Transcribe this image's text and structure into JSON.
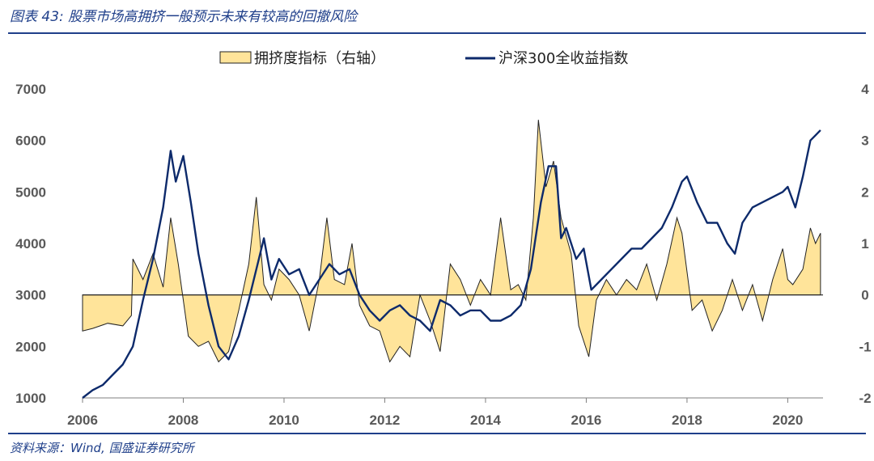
{
  "caption": "图表 43: 股票市场高拥挤一般预示未来有较高的回撤风险",
  "source": "资料来源：Wind, 国盛证券研究所",
  "colors": {
    "accent": "#1f3f8a",
    "fill": "#ffe49a",
    "line": "#0d2a6b",
    "outline": "#222222"
  },
  "chart_data": {
    "type": "area",
    "title": "",
    "legend_position": "top",
    "grid": false,
    "x_ticks": [
      "2006",
      "2008",
      "2010",
      "2012",
      "2014",
      "2016",
      "2018",
      "2020"
    ],
    "y_left_ticks": [
      "7000",
      "6000",
      "5000",
      "4000",
      "3000",
      "2000",
      "1000"
    ],
    "y_right_ticks": [
      "4",
      "3",
      "2",
      "1",
      "0",
      "-1",
      "-2"
    ],
    "y_left_range": [
      1000,
      7000
    ],
    "y_right_range": [
      -2,
      4
    ],
    "x_range": [
      2006,
      2020.7
    ],
    "series": [
      {
        "name": "拥挤度指标（右轴）",
        "axis": "right",
        "type": "area",
        "x": [
          2006.0,
          2006.2,
          2006.5,
          2006.8,
          2006.97,
          2007.0,
          2007.2,
          2007.4,
          2007.6,
          2007.75,
          2007.9,
          2008.1,
          2008.3,
          2008.5,
          2008.7,
          2008.9,
          2009.1,
          2009.3,
          2009.45,
          2009.6,
          2009.75,
          2009.9,
          2010.1,
          2010.3,
          2010.5,
          2010.7,
          2010.85,
          2011.0,
          2011.2,
          2011.35,
          2011.5,
          2011.7,
          2011.9,
          2012.1,
          2012.3,
          2012.5,
          2012.7,
          2012.9,
          2013.1,
          2013.3,
          2013.5,
          2013.7,
          2013.9,
          2014.1,
          2014.3,
          2014.5,
          2014.65,
          2014.8,
          2014.95,
          2015.05,
          2015.2,
          2015.35,
          2015.5,
          2015.7,
          2015.85,
          2016.05,
          2016.2,
          2016.4,
          2016.6,
          2016.8,
          2017.0,
          2017.2,
          2017.4,
          2017.6,
          2017.8,
          2017.9,
          2018.1,
          2018.3,
          2018.5,
          2018.7,
          2018.9,
          2019.1,
          2019.3,
          2019.5,
          2019.7,
          2019.9,
          2020.0,
          2020.1,
          2020.3,
          2020.45,
          2020.55,
          2020.65
        ],
        "values": [
          -0.7,
          -0.65,
          -0.55,
          -0.6,
          -0.4,
          0.7,
          0.3,
          0.8,
          0.15,
          1.5,
          0.6,
          -0.8,
          -1.0,
          -0.9,
          -1.3,
          -1.1,
          -0.3,
          0.6,
          1.9,
          0.2,
          -0.1,
          0.5,
          0.3,
          0.0,
          -0.7,
          0.3,
          1.5,
          0.3,
          0.2,
          1.0,
          -0.2,
          -0.6,
          -0.7,
          -1.3,
          -1.0,
          -1.2,
          0.0,
          -0.5,
          -1.1,
          0.6,
          0.3,
          -0.2,
          0.3,
          0.0,
          1.5,
          0.1,
          0.2,
          -0.1,
          1.5,
          3.4,
          2.1,
          2.6,
          1.5,
          0.8,
          -0.6,
          -1.2,
          -0.1,
          0.3,
          0.0,
          0.3,
          0.1,
          0.6,
          -0.1,
          0.6,
          1.5,
          1.2,
          -0.3,
          -0.1,
          -0.7,
          -0.3,
          0.3,
          -0.3,
          0.2,
          -0.5,
          0.3,
          0.9,
          0.3,
          0.2,
          0.5,
          1.3,
          1.0,
          1.2
        ]
      },
      {
        "name": "沪深300全收益指数",
        "axis": "left",
        "type": "line",
        "x": [
          2006.0,
          2006.2,
          2006.4,
          2006.6,
          2006.8,
          2007.0,
          2007.2,
          2007.4,
          2007.6,
          2007.75,
          2007.85,
          2008.0,
          2008.15,
          2008.3,
          2008.5,
          2008.7,
          2008.9,
          2009.1,
          2009.3,
          2009.5,
          2009.6,
          2009.75,
          2009.9,
          2010.1,
          2010.3,
          2010.5,
          2010.7,
          2010.9,
          2011.1,
          2011.3,
          2011.5,
          2011.7,
          2011.9,
          2012.1,
          2012.3,
          2012.5,
          2012.7,
          2012.9,
          2013.1,
          2013.3,
          2013.5,
          2013.7,
          2013.9,
          2014.1,
          2014.3,
          2014.5,
          2014.7,
          2014.9,
          2015.1,
          2015.25,
          2015.4,
          2015.5,
          2015.6,
          2015.8,
          2015.95,
          2016.1,
          2016.3,
          2016.5,
          2016.7,
          2016.9,
          2017.1,
          2017.3,
          2017.5,
          2017.7,
          2017.9,
          2018.0,
          2018.2,
          2018.4,
          2018.6,
          2018.8,
          2018.95,
          2019.1,
          2019.3,
          2019.5,
          2019.7,
          2019.9,
          2020.0,
          2020.15,
          2020.3,
          2020.45,
          2020.55,
          2020.65
        ],
        "values": [
          1000,
          1150,
          1250,
          1450,
          1650,
          2000,
          2900,
          3700,
          4700,
          5800,
          5200,
          5700,
          4800,
          3800,
          2800,
          2000,
          1750,
          2200,
          2900,
          3700,
          4100,
          3300,
          3700,
          3400,
          3500,
          3000,
          3300,
          3600,
          3400,
          3500,
          3000,
          2700,
          2500,
          2700,
          2800,
          2600,
          2500,
          2300,
          2900,
          2800,
          2600,
          2700,
          2700,
          2500,
          2500,
          2600,
          2800,
          3500,
          4800,
          5500,
          5500,
          4100,
          4300,
          3700,
          3900,
          3100,
          3300,
          3500,
          3700,
          3900,
          3900,
          4100,
          4300,
          4700,
          5200,
          5300,
          4800,
          4400,
          4400,
          4000,
          3800,
          4400,
          4700,
          4800,
          4900,
          5000,
          5100,
          4700,
          5300,
          6000,
          6100,
          6200
        ]
      }
    ]
  }
}
